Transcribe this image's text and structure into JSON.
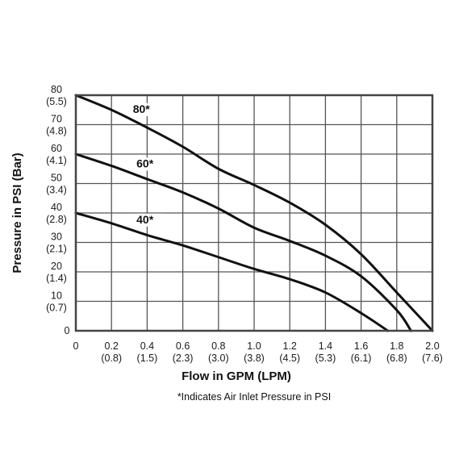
{
  "chart_data": {
    "type": "line",
    "xlabel": "Flow in GPM (LPM)",
    "ylabel": "Pressure in PSI (Bar)",
    "footnote": "*Indicates Air Inlet Pressure in PSI",
    "xlim": [
      0,
      2.0
    ],
    "ylim": [
      0,
      80
    ],
    "grid": true,
    "x_ticks": [
      {
        "value": 0,
        "label": "0",
        "sub": ""
      },
      {
        "value": 0.2,
        "label": "0.2",
        "sub": "(0.8)"
      },
      {
        "value": 0.4,
        "label": "0.4",
        "sub": "(1.5)"
      },
      {
        "value": 0.6,
        "label": "0.6",
        "sub": "(2.3)"
      },
      {
        "value": 0.8,
        "label": "0.8",
        "sub": "(3.0)"
      },
      {
        "value": 1.0,
        "label": "1.0",
        "sub": "(3.8)"
      },
      {
        "value": 1.2,
        "label": "1.2",
        "sub": "(4.5)"
      },
      {
        "value": 1.4,
        "label": "1.4",
        "sub": "(5.3)"
      },
      {
        "value": 1.6,
        "label": "1.6",
        "sub": "(6.1)"
      },
      {
        "value": 1.8,
        "label": "1.8",
        "sub": "(6.8)"
      },
      {
        "value": 2.0,
        "label": "2.0",
        "sub": "(7.6)"
      }
    ],
    "y_ticks": [
      {
        "value": 0,
        "label": "0",
        "sub": ""
      },
      {
        "value": 10,
        "label": "10",
        "sub": "(0.7)"
      },
      {
        "value": 20,
        "label": "20",
        "sub": "(1.4)"
      },
      {
        "value": 30,
        "label": "30",
        "sub": "(2.1)"
      },
      {
        "value": 40,
        "label": "40",
        "sub": "(2.8)"
      },
      {
        "value": 50,
        "label": "50",
        "sub": "(3.4)"
      },
      {
        "value": 60,
        "label": "60",
        "sub": "(4.1)"
      },
      {
        "value": 70,
        "label": "70",
        "sub": "(4.8)"
      },
      {
        "value": 80,
        "label": "80",
        "sub": "(5.5)"
      }
    ],
    "series": [
      {
        "name": "80*",
        "label_at": [
          0.32,
          74
        ],
        "points": [
          [
            0,
            80
          ],
          [
            0.2,
            75
          ],
          [
            0.4,
            69
          ],
          [
            0.6,
            62.5
          ],
          [
            0.8,
            55
          ],
          [
            1.0,
            49.5
          ],
          [
            1.2,
            43.5
          ],
          [
            1.4,
            36
          ],
          [
            1.6,
            26
          ],
          [
            1.8,
            13
          ],
          [
            2.0,
            0
          ]
        ]
      },
      {
        "name": "60*",
        "label_at": [
          0.34,
          55.5
        ],
        "points": [
          [
            0,
            60
          ],
          [
            0.2,
            56
          ],
          [
            0.4,
            51.5
          ],
          [
            0.6,
            47
          ],
          [
            0.8,
            41.5
          ],
          [
            1.0,
            35
          ],
          [
            1.2,
            30.5
          ],
          [
            1.4,
            25.5
          ],
          [
            1.6,
            18.5
          ],
          [
            1.8,
            7
          ],
          [
            1.88,
            0
          ]
        ]
      },
      {
        "name": "40*",
        "label_at": [
          0.34,
          36.5
        ],
        "points": [
          [
            0,
            40
          ],
          [
            0.2,
            36.5
          ],
          [
            0.4,
            32.5
          ],
          [
            0.6,
            29
          ],
          [
            0.8,
            25
          ],
          [
            1.0,
            21
          ],
          [
            1.2,
            17.5
          ],
          [
            1.4,
            13
          ],
          [
            1.6,
            6
          ],
          [
            1.75,
            0
          ]
        ]
      }
    ]
  }
}
